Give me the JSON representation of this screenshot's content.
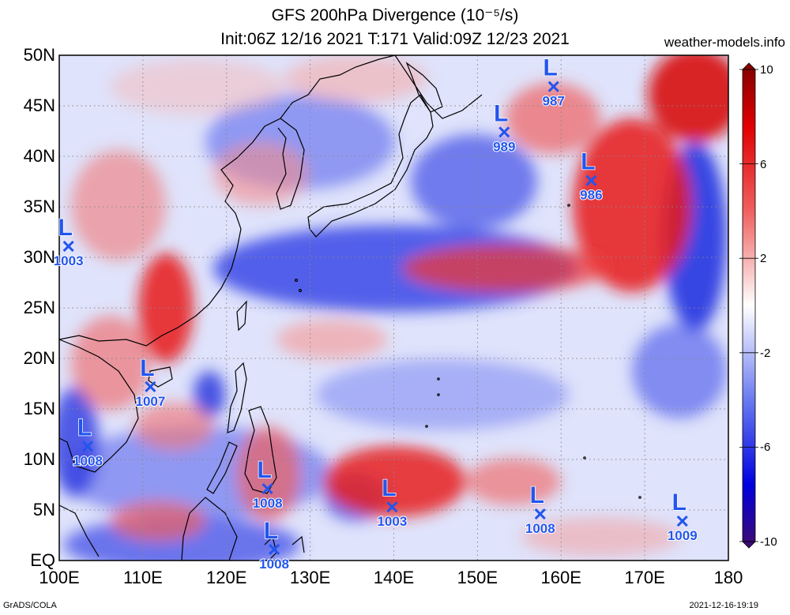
{
  "title": {
    "line1": "GFS 200hPa Divergence (10⁻⁵/s)",
    "line2": "Init:06Z 12/16 2021 T:171 Valid:09Z 12/23 2021"
  },
  "credit": "weather-models.info",
  "footer": {
    "left": "GrADS/COLA",
    "right": "2021-12-16-19:19"
  },
  "lat_labels": [
    "50N",
    "45N",
    "40N",
    "35N",
    "30N",
    "25N",
    "20N",
    "15N",
    "10N",
    "5N",
    "EQ"
  ],
  "lon_labels": [
    "100E",
    "110E",
    "120E",
    "130E",
    "140E",
    "150E",
    "160E",
    "170E",
    "180"
  ],
  "colorbar": {
    "labels": [
      "10",
      "6",
      "2",
      "-2",
      "-6",
      "-10"
    ],
    "colors": [
      "#3a0a7a",
      "#0000e0",
      "#5a6af0",
      "#c8d0f8",
      "#ffffff",
      "#f8c8c8",
      "#f05050",
      "#e00000",
      "#8a0000"
    ]
  },
  "lows": [
    {
      "label": "L",
      "pressure": "1003",
      "lon": 101.1,
      "lat": 31.1
    },
    {
      "label": "L",
      "pressure": "1007",
      "lon": 110.9,
      "lat": 17.2
    },
    {
      "label": "L",
      "pressure": "1008",
      "lon": 103.4,
      "lat": 11.3
    },
    {
      "label": "L",
      "pressure": "1008",
      "lon": 124.9,
      "lat": 7.1
    },
    {
      "label": "L",
      "pressure": "1008",
      "lon": 125.7,
      "lat": 1.1
    },
    {
      "label": "L",
      "pressure": "1003",
      "lon": 139.8,
      "lat": 5.3
    },
    {
      "label": "L",
      "pressure": "1008",
      "lon": 157.5,
      "lat": 4.6
    },
    {
      "label": "L",
      "pressure": "1009",
      "lon": 174.5,
      "lat": 3.9
    },
    {
      "label": "L",
      "pressure": "989",
      "lon": 153.2,
      "lat": 42.4
    },
    {
      "label": "L",
      "pressure": "987",
      "lon": 159.1,
      "lat": 46.9
    },
    {
      "label": "L",
      "pressure": "986",
      "lon": 163.6,
      "lat": 37.6
    }
  ],
  "colors": {
    "low_marker": "#2255ee",
    "grid": "#888888",
    "coast": "#000000"
  }
}
